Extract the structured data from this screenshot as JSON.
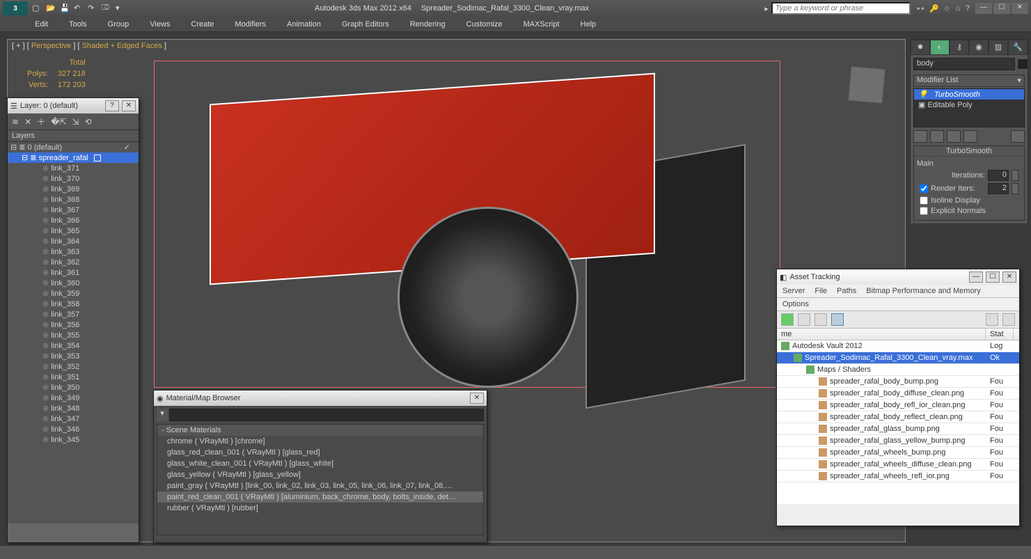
{
  "title": {
    "app": "Autodesk 3ds Max  2012 x64",
    "file": "Spreader_Sodimac_Rafal_3300_Clean_vray.max"
  },
  "search_placeholder": "Type a keyword or phrase",
  "menu": [
    "Edit",
    "Tools",
    "Group",
    "Views",
    "Create",
    "Modifiers",
    "Animation",
    "Graph Editors",
    "Rendering",
    "Customize",
    "MAXScript",
    "Help"
  ],
  "viewport": {
    "label_prefix": "[ + ] [ ",
    "label_view": "Perspective",
    "label_mid": " ] [ ",
    "label_mode": "Shaded + Edged Faces",
    "label_suffix": " ]",
    "stats": {
      "total_label": "Total",
      "polys_label": "Polys:",
      "polys": "327 218",
      "verts_label": "Verts:",
      "verts": "172 203"
    }
  },
  "layer_panel": {
    "title": "Layer: 0 (default)",
    "header": "Layers",
    "root": "0 (default)",
    "group": "spreader_rafal",
    "items": [
      "link_371",
      "link_370",
      "link_369",
      "link_368",
      "link_367",
      "link_366",
      "link_365",
      "link_364",
      "link_363",
      "link_362",
      "link_361",
      "link_360",
      "link_359",
      "link_358",
      "link_357",
      "link_356",
      "link_355",
      "link_354",
      "link_353",
      "link_352",
      "link_351",
      "link_350",
      "link_349",
      "link_348",
      "link_347",
      "link_346",
      "link_345"
    ]
  },
  "cmdpanel": {
    "object_name": "body",
    "modlist_label": "Modifier List",
    "stack": {
      "top": "TurboSmooth",
      "base": "Editable Poly"
    },
    "rollout": {
      "title": "TurboSmooth",
      "group": "Main",
      "iterations_label": "Iterations:",
      "iterations": "0",
      "render_iters_label": "Render Iters:",
      "render_iters": "2",
      "isoline": "Isoline Display",
      "explicit": "Explicit Normals"
    }
  },
  "material_panel": {
    "title": "Material/Map Browser",
    "section": "Scene Materials",
    "items": [
      "chrome ( VRayMtl ) [chrome]",
      "glass_red_clean_001 ( VRayMtl ) [glass_red]",
      "glass_white_clean_001 ( VRayMtl ) [glass_white]",
      "glass_yellow ( VRayMtl ) [glass_yellow]",
      "paint_gray ( VRayMtl )  [link_00, link_02, link_03, link_05, link_06, link_07, link_08,…",
      "paint_red_clean_001 ( VRayMtl ) [aluminium, back_chrome, body, bolts_inside, det…",
      "rubber ( VRayMtl ) [rubber]"
    ],
    "selected_index": 5
  },
  "asset_panel": {
    "title": "Asset Tracking",
    "menus": [
      "Server",
      "File",
      "Paths",
      "Bitmap Performance and Memory"
    ],
    "menus2": "Options",
    "col_name": "me",
    "col_stat": "Stat",
    "rows": [
      {
        "indent": 0,
        "icon": "vault",
        "name": "Autodesk Vault 2012",
        "stat": "Log"
      },
      {
        "indent": 1,
        "icon": "max",
        "name": "Spreader_Sodimac_Rafal_3300_Clean_vray.max",
        "stat": "Ok",
        "sel": true
      },
      {
        "indent": 2,
        "icon": "folder",
        "name": "Maps / Shaders",
        "stat": ""
      },
      {
        "indent": 3,
        "icon": "img",
        "name": "spreader_rafal_body_bump.png",
        "stat": "Fou"
      },
      {
        "indent": 3,
        "icon": "img",
        "name": "spreader_rafal_body_diffuse_clean.png",
        "stat": "Fou"
      },
      {
        "indent": 3,
        "icon": "img",
        "name": "spreader_rafal_body_refl_ior_clean.png",
        "stat": "Fou"
      },
      {
        "indent": 3,
        "icon": "img",
        "name": "spreader_rafal_body_reflect_clean.png",
        "stat": "Fou"
      },
      {
        "indent": 3,
        "icon": "img",
        "name": "spreader_rafal_glass_bump.png",
        "stat": "Fou"
      },
      {
        "indent": 3,
        "icon": "img",
        "name": "spreader_rafal_glass_yellow_bump.png",
        "stat": "Fou"
      },
      {
        "indent": 3,
        "icon": "img",
        "name": "spreader_rafal_wheels_bump.png",
        "stat": "Fou"
      },
      {
        "indent": 3,
        "icon": "img",
        "name": "spreader_rafal_wheels_diffuse_clean.png",
        "stat": "Fou"
      },
      {
        "indent": 3,
        "icon": "img",
        "name": "spreader_rafal_wheels_refl_ior.png",
        "stat": "Fou"
      }
    ]
  },
  "colors": {
    "accent": "#d4a94a",
    "sel": "#3a6fd8",
    "red": "#c83020"
  }
}
